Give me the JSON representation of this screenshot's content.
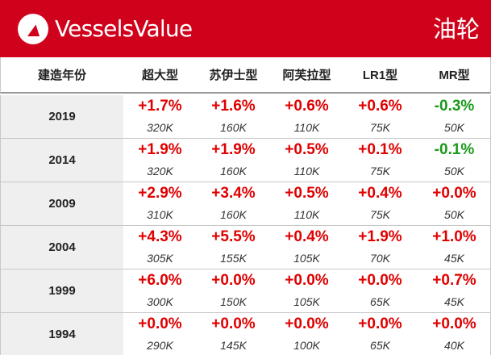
{
  "header": {
    "brand": "VesselsValue",
    "category": "油轮",
    "accent_color": "#d0021b",
    "logo_icon": "triangle-logo-icon"
  },
  "table": {
    "columns": [
      "建造年份",
      "超大型",
      "苏伊士型",
      "阿芙拉型",
      "LR1型",
      "MR型"
    ],
    "colors": {
      "increase": "#e00000",
      "decrease": "#1a9a1a"
    },
    "rows": [
      {
        "year": "2019",
        "cells": [
          {
            "change": "+1.7%",
            "size": "320K",
            "dir": "up"
          },
          {
            "change": "+1.6%",
            "size": "160K",
            "dir": "up"
          },
          {
            "change": "+0.6%",
            "size": "110K",
            "dir": "up"
          },
          {
            "change": "+0.6%",
            "size": "75K",
            "dir": "up"
          },
          {
            "change": "-0.3%",
            "size": "50K",
            "dir": "down"
          }
        ]
      },
      {
        "year": "2014",
        "cells": [
          {
            "change": "+1.9%",
            "size": "320K",
            "dir": "up"
          },
          {
            "change": "+1.9%",
            "size": "160K",
            "dir": "up"
          },
          {
            "change": "+0.5%",
            "size": "110K",
            "dir": "up"
          },
          {
            "change": "+0.1%",
            "size": "75K",
            "dir": "up"
          },
          {
            "change": "-0.1%",
            "size": "50K",
            "dir": "down"
          }
        ]
      },
      {
        "year": "2009",
        "cells": [
          {
            "change": "+2.9%",
            "size": "310K",
            "dir": "up"
          },
          {
            "change": "+3.4%",
            "size": "160K",
            "dir": "up"
          },
          {
            "change": "+0.5%",
            "size": "110K",
            "dir": "up"
          },
          {
            "change": "+0.4%",
            "size": "75K",
            "dir": "up"
          },
          {
            "change": "+0.0%",
            "size": "50K",
            "dir": "up"
          }
        ]
      },
      {
        "year": "2004",
        "cells": [
          {
            "change": "+4.3%",
            "size": "305K",
            "dir": "up"
          },
          {
            "change": "+5.5%",
            "size": "155K",
            "dir": "up"
          },
          {
            "change": "+0.4%",
            "size": "105K",
            "dir": "up"
          },
          {
            "change": "+1.9%",
            "size": "70K",
            "dir": "up"
          },
          {
            "change": "+1.0%",
            "size": "45K",
            "dir": "up"
          }
        ]
      },
      {
        "year": "1999",
        "cells": [
          {
            "change": "+6.0%",
            "size": "300K",
            "dir": "up"
          },
          {
            "change": "+0.0%",
            "size": "150K",
            "dir": "up"
          },
          {
            "change": "+0.0%",
            "size": "105K",
            "dir": "up"
          },
          {
            "change": "+0.0%",
            "size": "65K",
            "dir": "up"
          },
          {
            "change": "+0.7%",
            "size": "45K",
            "dir": "up"
          }
        ]
      },
      {
        "year": "1994",
        "cells": [
          {
            "change": "+0.0%",
            "size": "290K",
            "dir": "up"
          },
          {
            "change": "+0.0%",
            "size": "145K",
            "dir": "up"
          },
          {
            "change": "+0.0%",
            "size": "100K",
            "dir": "up"
          },
          {
            "change": "+0.0%",
            "size": "65K",
            "dir": "up"
          },
          {
            "change": "+0.0%",
            "size": "40K",
            "dir": "up"
          }
        ]
      }
    ]
  }
}
